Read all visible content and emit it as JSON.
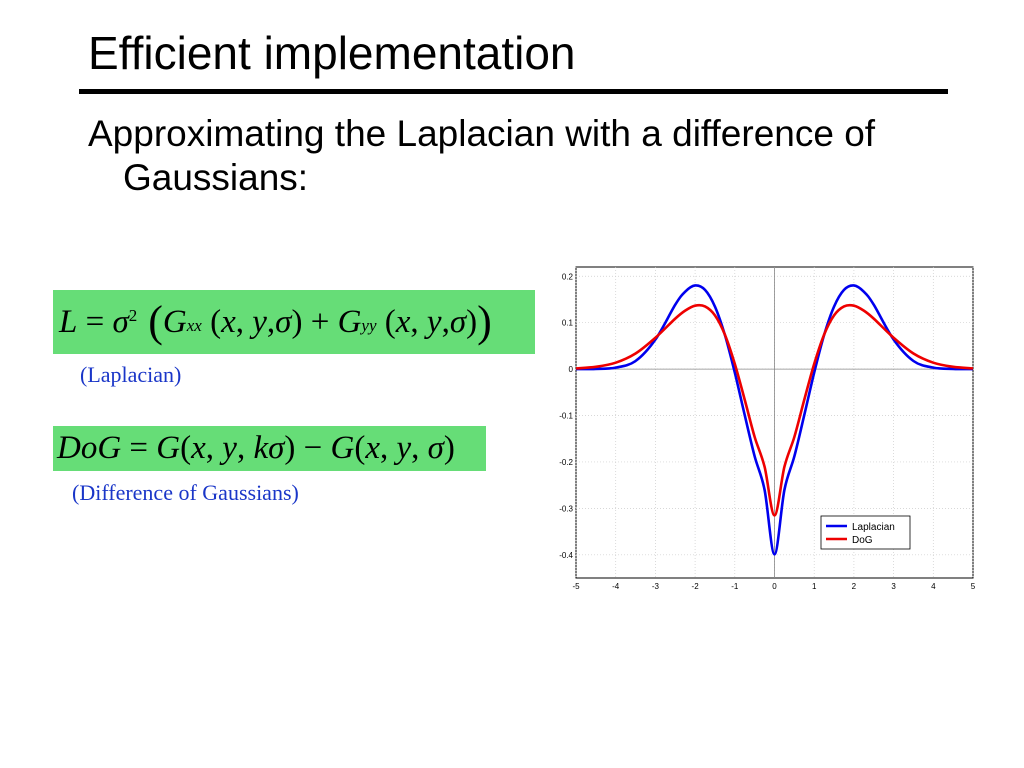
{
  "slide": {
    "title": "Efficient implementation",
    "bullet": "Approximating the Laplacian with a difference of Gaussians:"
  },
  "formulas": {
    "laplacian_caption": "(Laplacian)",
    "dog_caption": "(Difference of Gaussians)"
  },
  "colors": {
    "formula_box": "#66dd77",
    "caption": "#1a36c8",
    "laplacian_line": "#0000ee",
    "dog_line": "#ee0000"
  },
  "chart_data": {
    "type": "line",
    "title": "",
    "xlabel": "",
    "ylabel": "",
    "xlim": [
      -5,
      5
    ],
    "ylim": [
      -0.45,
      0.22
    ],
    "x_ticks": [
      -5,
      -4,
      -3,
      -2,
      -1,
      0,
      1,
      2,
      3,
      4,
      5
    ],
    "y_ticks": [
      0.2,
      0.1,
      0,
      -0.1,
      -0.2,
      -0.3,
      -0.4
    ],
    "grid": true,
    "legend_position": "bottom-right",
    "x": [
      -5,
      -4.5,
      -4,
      -3.5,
      -3,
      -2.5,
      -2.25,
      -2,
      -1.75,
      -1.5,
      -1.25,
      -1,
      -0.75,
      -0.5,
      -0.25,
      0,
      0.25,
      0.5,
      0.75,
      1,
      1.25,
      1.5,
      1.75,
      2,
      2.25,
      2.5,
      3,
      3.5,
      4,
      4.5,
      5
    ],
    "series": [
      {
        "name": "Laplacian",
        "color": "#0000ee",
        "values": [
          0.0001,
          0.0004,
          0.0032,
          0.0175,
          0.0637,
          0.1388,
          0.1669,
          0.1802,
          0.1707,
          0.1347,
          0.0737,
          -0.0075,
          -0.099,
          -0.1879,
          -0.26,
          -0.3989,
          -0.26,
          -0.1879,
          -0.099,
          -0.0075,
          0.0737,
          0.1347,
          0.1707,
          0.1802,
          0.1669,
          0.1388,
          0.0637,
          0.0175,
          0.0032,
          0.0004,
          0.0001
        ]
      },
      {
        "name": "DoG",
        "color": "#ee0000",
        "values": [
          0.0016,
          0.0049,
          0.0139,
          0.0337,
          0.0676,
          0.1088,
          0.126,
          0.1367,
          0.135,
          0.1157,
          0.0743,
          0.0112,
          -0.066,
          -0.1461,
          -0.2103,
          -0.315,
          -0.2103,
          -0.1461,
          -0.066,
          0.0112,
          0.0743,
          0.1157,
          0.135,
          0.1367,
          0.126,
          0.1088,
          0.0676,
          0.0337,
          0.0139,
          0.0049,
          0.0016
        ]
      }
    ]
  }
}
